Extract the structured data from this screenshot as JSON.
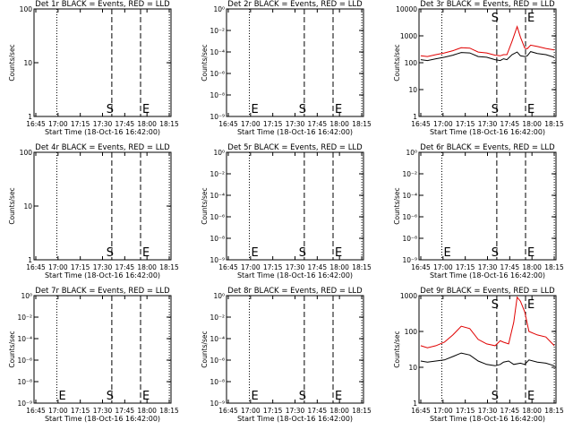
{
  "figure": {
    "colors": {
      "events": "#000000",
      "lld": "#e00000",
      "axes": "#000000",
      "background": "#ffffff"
    }
  },
  "chart_data": [
    {
      "type": "line",
      "title": "Det 1r BLACK = Events, RED = LLD",
      "xlabel": "Start Time (18-Oct-16 16:42:00)",
      "ylabel": "Counts/sec",
      "xlim": [
        16.7,
        18.32
      ],
      "ylim": [
        1,
        100
      ],
      "yscale": "log",
      "x_ticks": [
        "16:45",
        "17:00",
        "17:15",
        "17:30",
        "17:45",
        "18:00",
        "18:15"
      ],
      "y_ticks": [
        "1",
        "10",
        "100"
      ],
      "markers": [
        {
          "type": "dotted",
          "x": 16.97
        },
        {
          "type": "dashed",
          "x": 17.62,
          "label": "S"
        },
        {
          "type": "dashed",
          "x": 17.96,
          "label": "E"
        },
        {
          "type": "dotted",
          "x": 18.3
        }
      ],
      "series": []
    },
    {
      "type": "line",
      "title": "Det 2r BLACK = Events, RED = LLD",
      "xlabel": "Start Time (18-Oct-16 16:42:00)",
      "ylabel": "Counts/sec",
      "xlim": [
        16.7,
        18.32
      ],
      "ylim": [
        1e-09,
        1
      ],
      "yscale": "log",
      "x_ticks": [
        "16:45",
        "17:00",
        "17:15",
        "17:30",
        "17:45",
        "18:00",
        "18:15"
      ],
      "y_ticks": [
        "10⁻⁹",
        "10⁻⁸",
        "10⁻⁶",
        "10⁻⁴",
        "10⁻²",
        "10⁰"
      ],
      "markers": [
        {
          "type": "dotted",
          "x": 16.97,
          "label": "E"
        },
        {
          "type": "dashed",
          "x": 17.62,
          "label": "S"
        },
        {
          "type": "dashed",
          "x": 17.96,
          "label": "E"
        },
        {
          "type": "dotted",
          "x": 18.3
        }
      ],
      "series": []
    },
    {
      "type": "line",
      "title": "Det 3r BLACK = Events, RED = LLD",
      "xlabel": "Start Time (18-Oct-16 16:42:00)",
      "ylabel": "Counts/sec",
      "xlim": [
        16.7,
        18.32
      ],
      "ylim": [
        1,
        10000
      ],
      "yscale": "log",
      "x_ticks": [
        "16:45",
        "17:00",
        "17:15",
        "17:30",
        "17:45",
        "18:00",
        "18:15"
      ],
      "y_ticks": [
        "1",
        "10",
        "100",
        "1000",
        "10000"
      ],
      "markers": [
        {
          "type": "dotted",
          "x": 16.97
        },
        {
          "type": "dashed",
          "x": 17.62,
          "label": "S"
        },
        {
          "type": "dashed",
          "x": 17.96,
          "label": "E"
        },
        {
          "type": "dotted",
          "x": 18.3
        }
      ],
      "series": [
        {
          "color": "#e00000",
          "x": [
            16.72,
            16.8,
            16.9,
            17.0,
            17.1,
            17.2,
            17.3,
            17.4,
            17.5,
            17.6,
            17.66,
            17.7,
            17.74,
            17.8,
            17.86,
            17.9,
            17.95,
            17.98,
            18.02,
            18.1,
            18.2,
            18.3
          ],
          "values": [
            180,
            170,
            200,
            230,
            280,
            360,
            350,
            250,
            230,
            190,
            180,
            200,
            200,
            620,
            2200,
            900,
            350,
            330,
            450,
            400,
            340,
            300
          ]
        },
        {
          "color": "#000000",
          "x": [
            16.72,
            16.8,
            16.9,
            17.0,
            17.1,
            17.2,
            17.3,
            17.4,
            17.5,
            17.6,
            17.66,
            17.7,
            17.74,
            17.8,
            17.86,
            17.9,
            17.95,
            17.98,
            18.02,
            18.1,
            18.2,
            18.3
          ],
          "values": [
            130,
            120,
            140,
            160,
            190,
            240,
            230,
            170,
            160,
            130,
            120,
            140,
            130,
            200,
            250,
            180,
            170,
            180,
            260,
            220,
            200,
            160
          ]
        }
      ]
    },
    {
      "type": "line",
      "title": "Det 4r BLACK = Events, RED = LLD",
      "xlabel": "Start Time (18-Oct-16 16:42:00)",
      "ylabel": "Counts/sec",
      "xlim": [
        16.7,
        18.32
      ],
      "ylim": [
        1,
        100
      ],
      "yscale": "log",
      "x_ticks": [
        "16:45",
        "17:00",
        "17:15",
        "17:30",
        "17:45",
        "18:00",
        "18:15"
      ],
      "y_ticks": [
        "1",
        "10",
        "100"
      ],
      "markers": [
        {
          "type": "dotted",
          "x": 16.97
        },
        {
          "type": "dashed",
          "x": 17.62,
          "label": "S"
        },
        {
          "type": "dashed",
          "x": 17.96,
          "label": "E"
        },
        {
          "type": "dotted",
          "x": 18.3
        }
      ],
      "series": []
    },
    {
      "type": "line",
      "title": "Det 5r BLACK = Events, RED = LLD",
      "xlabel": "Start Time (18-Oct-16 16:42:00)",
      "ylabel": "Counts/sec",
      "xlim": [
        16.7,
        18.32
      ],
      "ylim": [
        1e-09,
        1
      ],
      "yscale": "log",
      "x_ticks": [
        "16:45",
        "17:00",
        "17:15",
        "17:30",
        "17:45",
        "18:00",
        "18:15"
      ],
      "y_ticks": [
        "10⁻⁹",
        "10⁻⁸",
        "10⁻⁶",
        "10⁻⁴",
        "10⁻²",
        "10⁰"
      ],
      "markers": [
        {
          "type": "dotted",
          "x": 16.97,
          "label": "E"
        },
        {
          "type": "dashed",
          "x": 17.62,
          "label": "S"
        },
        {
          "type": "dashed",
          "x": 17.96,
          "label": "E"
        },
        {
          "type": "dotted",
          "x": 18.3
        }
      ],
      "series": []
    },
    {
      "type": "line",
      "title": "Det 6r BLACK = Events, RED = LLD",
      "xlabel": "Start Time (18-Oct-16 16:42:00)",
      "ylabel": "Counts/sec",
      "xlim": [
        16.7,
        18.32
      ],
      "ylim": [
        1e-09,
        1
      ],
      "yscale": "log",
      "x_ticks": [
        "16:45",
        "17:00",
        "17:15",
        "17:30",
        "17:45",
        "18:00",
        "18:15"
      ],
      "y_ticks": [
        "10⁻⁹",
        "10⁻⁸",
        "10⁻⁶",
        "10⁻⁴",
        "10⁻²",
        "10⁰"
      ],
      "markers": [
        {
          "type": "dotted",
          "x": 16.97,
          "label": "E"
        },
        {
          "type": "dashed",
          "x": 17.62,
          "label": "S"
        },
        {
          "type": "dashed",
          "x": 17.96,
          "label": "E"
        },
        {
          "type": "dotted",
          "x": 18.3
        }
      ],
      "series": []
    },
    {
      "type": "line",
      "title": "Det 7r BLACK = Events, RED = LLD",
      "xlabel": "Start Time (18-Oct-16 16:42:00)",
      "ylabel": "Counts/sec",
      "xlim": [
        16.7,
        18.32
      ],
      "ylim": [
        1e-09,
        1
      ],
      "yscale": "log",
      "x_ticks": [
        "16:45",
        "17:00",
        "17:15",
        "17:30",
        "17:45",
        "18:00",
        "18:15"
      ],
      "y_ticks": [
        "10⁻⁹",
        "10⁻⁸",
        "10⁻⁶",
        "10⁻⁴",
        "10⁻²",
        "10⁰"
      ],
      "markers": [
        {
          "type": "dotted",
          "x": 16.97,
          "label": "E"
        },
        {
          "type": "dashed",
          "x": 17.62,
          "label": "S"
        },
        {
          "type": "dashed",
          "x": 17.96,
          "label": "E"
        },
        {
          "type": "dotted",
          "x": 18.3
        }
      ],
      "series": []
    },
    {
      "type": "line",
      "title": "Det 8r BLACK = Events, RED = LLD",
      "xlabel": "Start Time (18-Oct-16 16:42:00)",
      "ylabel": "Counts/sec",
      "xlim": [
        16.7,
        18.32
      ],
      "ylim": [
        1e-09,
        1
      ],
      "yscale": "log",
      "x_ticks": [
        "16:45",
        "17:00",
        "17:15",
        "17:30",
        "17:45",
        "18:00",
        "18:15"
      ],
      "y_ticks": [
        "10⁻⁹",
        "10⁻⁸",
        "10⁻⁶",
        "10⁻⁴",
        "10⁻²",
        "10⁰"
      ],
      "markers": [
        {
          "type": "dotted",
          "x": 16.97,
          "label": "E"
        },
        {
          "type": "dashed",
          "x": 17.62,
          "label": "S"
        },
        {
          "type": "dashed",
          "x": 17.96,
          "label": "E"
        },
        {
          "type": "dotted",
          "x": 18.3
        }
      ],
      "series": []
    },
    {
      "type": "line",
      "title": "Det 9r BLACK = Events, RED = LLD",
      "xlabel": "Start Time (18-Oct-16 16:42:00)",
      "ylabel": "Counts/sec",
      "xlim": [
        16.7,
        18.32
      ],
      "ylim": [
        1,
        1000
      ],
      "yscale": "log",
      "x_ticks": [
        "16:45",
        "17:00",
        "17:15",
        "17:30",
        "17:45",
        "18:00",
        "18:15"
      ],
      "y_ticks": [
        "1",
        "10",
        "100",
        "1000"
      ],
      "markers": [
        {
          "type": "dotted",
          "x": 16.97
        },
        {
          "type": "dashed",
          "x": 17.62,
          "label": "S"
        },
        {
          "type": "dashed",
          "x": 17.96,
          "label": "E"
        },
        {
          "type": "dotted",
          "x": 18.3
        }
      ],
      "series": [
        {
          "color": "#e00000",
          "x": [
            16.72,
            16.8,
            16.9,
            17.0,
            17.1,
            17.2,
            17.3,
            17.4,
            17.5,
            17.6,
            17.66,
            17.7,
            17.76,
            17.82,
            17.86,
            17.9,
            17.95,
            18.0,
            18.1,
            18.2,
            18.3
          ],
          "values": [
            40,
            35,
            40,
            50,
            80,
            140,
            120,
            60,
            45,
            40,
            55,
            50,
            45,
            180,
            900,
            700,
            350,
            100,
            80,
            70,
            40
          ]
        },
        {
          "color": "#000000",
          "x": [
            16.72,
            16.8,
            16.9,
            17.0,
            17.1,
            17.2,
            17.3,
            17.4,
            17.5,
            17.6,
            17.66,
            17.7,
            17.76,
            17.82,
            17.9,
            17.95,
            18.0,
            18.1,
            18.2,
            18.3
          ],
          "values": [
            15,
            14,
            15,
            16,
            20,
            25,
            22,
            15,
            12,
            11,
            12,
            14,
            15,
            12,
            13,
            12,
            16,
            14,
            13,
            11
          ]
        }
      ]
    }
  ]
}
